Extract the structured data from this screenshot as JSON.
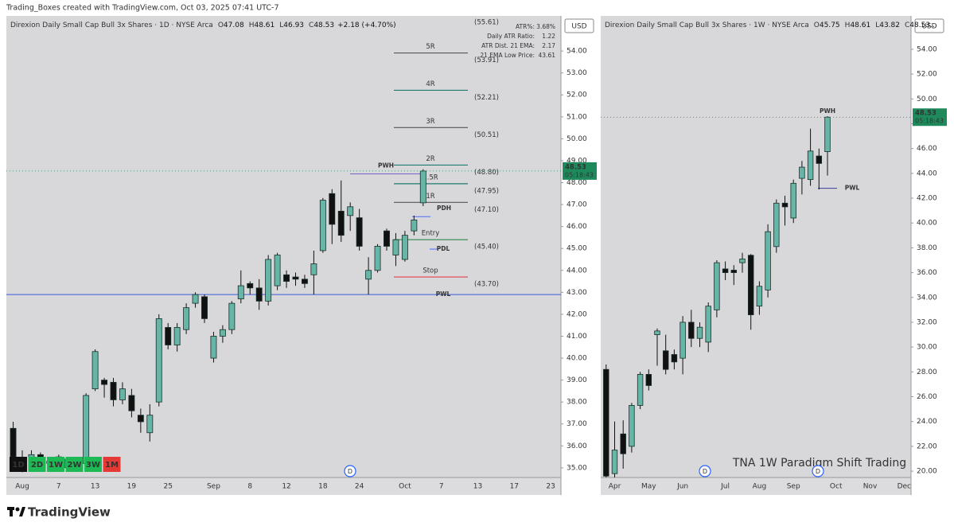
{
  "header": "Trading_Boxes created with TradingView.com, Oct 03, 2025 07:41 UTC-7",
  "brand": "TradingView",
  "ohlc_letters": [
    "O",
    "H",
    "L",
    "C"
  ],
  "event_marker": "D",
  "timeframes": [
    {
      "label": "1D",
      "color": "#111111"
    },
    {
      "label": "2D",
      "color": "#1db954"
    },
    {
      "label": "1W",
      "color": "#1db954"
    },
    {
      "label": "2W",
      "color": "#1db954"
    },
    {
      "label": "3W",
      "color": "#1db954"
    },
    {
      "label": "1M",
      "color": "#e53935"
    }
  ],
  "chart_data": [
    {
      "type": "candlestick",
      "legend_title": "Direxion Daily Small Cap Bull 3x Shares · 1D · NYSE Arca",
      "change": "+2.18 (+4.70%)",
      "currency": "USD",
      "timer": "05:18:43",
      "up_color": "#66b5a6",
      "down_color": "#111111",
      "last_price_color": "#1e8a5c",
      "grid": false,
      "ylim": [
        34.56,
        55.6
      ],
      "yticks": [
        {
          "value": 35,
          "label": "35.00"
        },
        {
          "value": 36,
          "label": "36.00"
        },
        {
          "value": 37,
          "label": "37.00"
        },
        {
          "value": 38,
          "label": "38.00"
        },
        {
          "value": 39,
          "label": "39.00"
        },
        {
          "value": 40,
          "label": "40.00"
        },
        {
          "value": 41,
          "label": "41.00"
        },
        {
          "value": 42,
          "label": "42.00"
        },
        {
          "value": 43,
          "label": "43.00"
        },
        {
          "value": 44,
          "label": "44.00"
        },
        {
          "value": 45,
          "label": "45.00"
        },
        {
          "value": 46,
          "label": "46.00"
        },
        {
          "value": 47,
          "label": "47.00"
        },
        {
          "value": 48,
          "label": "48.00"
        },
        {
          "value": 49,
          "label": "49.00"
        },
        {
          "value": 50,
          "label": "50.00"
        },
        {
          "value": 51,
          "label": "51.00"
        },
        {
          "value": 52,
          "label": "52.00"
        },
        {
          "value": 53,
          "label": "53.00"
        },
        {
          "value": 54,
          "label": "54.00"
        }
      ],
      "categories": [
        null,
        "Aug",
        null,
        null,
        null,
        "7",
        null,
        null,
        null,
        "13",
        null,
        null,
        null,
        "19",
        null,
        null,
        null,
        "25",
        null,
        null,
        null,
        null,
        "Sep",
        null,
        null,
        null,
        "8",
        null,
        null,
        null,
        "12",
        null,
        null,
        null,
        "18",
        null,
        null,
        null,
        "24",
        null,
        null,
        null,
        null,
        "Oct",
        null,
        null,
        null,
        "7",
        null,
        null,
        null,
        "13",
        null,
        null,
        null,
        "17",
        null,
        null,
        null,
        "23"
      ],
      "open": [
        36.8,
        35.4,
        35.1,
        35.6,
        35.2,
        35.5,
        35.0,
        35.3,
        35.2,
        38.6,
        39.0,
        38.9,
        38.1,
        38.3,
        37.4,
        36.6,
        38.0,
        41.4,
        40.6,
        41.3,
        42.5,
        42.8,
        40.0,
        41.0,
        41.3,
        42.7,
        43.4,
        43.2,
        42.6,
        43.3,
        43.8,
        43.7,
        43.6,
        43.8,
        44.9,
        47.5,
        46.7,
        46.5,
        46.4,
        43.6,
        44.0,
        45.8,
        44.7,
        44.5,
        45.8,
        47.08,
        null,
        null,
        null,
        null,
        null,
        null,
        null,
        null,
        null,
        null,
        null,
        null,
        null,
        null
      ],
      "high": [
        37.1,
        35.8,
        35.8,
        35.7,
        35.5,
        35.6,
        35.5,
        35.4,
        38.4,
        40.4,
        39.1,
        39.1,
        38.9,
        38.6,
        37.7,
        37.9,
        42.0,
        41.6,
        41.6,
        42.5,
        43.0,
        42.9,
        41.2,
        41.5,
        42.6,
        44.0,
        43.5,
        43.6,
        44.7,
        44.8,
        44.0,
        43.9,
        43.8,
        44.9,
        47.3,
        47.7,
        48.1,
        47.1,
        46.8,
        44.6,
        45.2,
        45.9,
        45.7,
        45.8,
        46.5,
        48.61,
        null,
        null,
        null,
        null,
        null,
        null,
        null,
        null,
        null,
        null,
        null,
        null,
        null,
        null
      ],
      "low": [
        35.2,
        34.8,
        35.0,
        35.1,
        35.0,
        34.9,
        34.9,
        34.9,
        35.0,
        38.5,
        38.2,
        37.8,
        37.9,
        37.3,
        36.6,
        36.2,
        37.8,
        40.4,
        40.3,
        41.1,
        42.3,
        41.6,
        39.8,
        40.7,
        41.1,
        42.5,
        42.9,
        42.2,
        42.4,
        43.1,
        43.2,
        43.3,
        43.2,
        42.9,
        44.8,
        45.2,
        45.3,
        45.8,
        44.9,
        42.9,
        43.9,
        44.9,
        44.2,
        44.4,
        45.6,
        46.93,
        null,
        null,
        null,
        null,
        null,
        null,
        null,
        null,
        null,
        null,
        null,
        null,
        null,
        null
      ],
      "close": [
        35.5,
        35.1,
        35.6,
        35.2,
        35.3,
        35.0,
        35.4,
        35.0,
        38.3,
        40.3,
        38.8,
        38.1,
        38.6,
        37.6,
        37.1,
        37.4,
        41.8,
        40.6,
        41.4,
        42.3,
        42.9,
        41.8,
        41.0,
        41.3,
        42.5,
        43.3,
        43.2,
        42.6,
        44.5,
        44.7,
        43.5,
        43.6,
        43.4,
        44.3,
        47.2,
        46.1,
        45.6,
        46.9,
        45.1,
        44.0,
        45.1,
        45.1,
        45.4,
        45.6,
        46.3,
        48.53,
        null,
        null,
        null,
        null,
        null,
        null,
        null,
        null,
        null,
        null,
        null,
        null,
        null,
        null
      ],
      "top_value_label": "(55.61)",
      "levels": [
        {
          "name": "5R",
          "value": 53.91,
          "value_label": "(53.91)",
          "color": "#555555"
        },
        {
          "name": "4R",
          "value": 52.21,
          "value_label": "(52.21)",
          "color": "#1f7a6e"
        },
        {
          "name": "3R",
          "value": 50.51,
          "value_label": "(50.51)",
          "color": "#555555"
        },
        {
          "name": "2R",
          "value": 48.8,
          "value_label": "(48.80)",
          "color": "#1f7a6e"
        },
        {
          "name": "1.5R",
          "value": 47.95,
          "value_label": "(47.95)",
          "color": "#1f7a6e"
        },
        {
          "name": "1R",
          "value": 47.1,
          "value_label": "(47.10)",
          "color": "#555555"
        },
        {
          "name": "Entry",
          "value": 45.4,
          "value_label": "(45.40)",
          "color": "#2a8a4a"
        },
        {
          "name": "Stop",
          "value": 43.7,
          "value_label": "(43.70)",
          "color": "#e0424a"
        }
      ],
      "markers": [
        {
          "name": "PWH",
          "value": 48.4,
          "color": "#7b61c4"
        },
        {
          "name": "PDH",
          "value": 46.45,
          "color": "#4a6cf7"
        },
        {
          "name": "PDL",
          "value": 44.97,
          "color": "#4a6cf7"
        },
        {
          "name": "PWL",
          "value": 42.9,
          "color": "#3b5bdb"
        }
      ],
      "info_table": [
        {
          "label": "ATR%:",
          "value": "3.68%",
          "color": "#111111"
        },
        {
          "label": "Daily ATR Ratio:",
          "value": "1.22",
          "color": "#e0424a"
        },
        {
          "label": "ATR Dist. 21 EMA:",
          "value": "2.17",
          "color": "#e0424a"
        },
        {
          "label": "21 EMA Low Price:",
          "value": "43.61",
          "color": "#111111"
        }
      ]
    },
    {
      "type": "candlestick",
      "legend_title": "Direxion Daily Small Cap Bull 3x Shares · 1W · NYSE Arca",
      "overflow": "...",
      "currency": "USD",
      "timer": "05:18:43",
      "watermark": "TNA 1W   Paradigm Shift Trading",
      "up_color": "#66b5a6",
      "down_color": "#111111",
      "last_price_color": "#1e8a5c",
      "grid": false,
      "ylim": [
        19.49,
        56.69
      ],
      "yticks": [
        {
          "value": 20,
          "label": "20.00"
        },
        {
          "value": 22,
          "label": "22.00"
        },
        {
          "value": 24,
          "label": "24.00"
        },
        {
          "value": 26,
          "label": "26.00"
        },
        {
          "value": 28,
          "label": "28.00"
        },
        {
          "value": 30,
          "label": "30.00"
        },
        {
          "value": 32,
          "label": "32.00"
        },
        {
          "value": 34,
          "label": "34.00"
        },
        {
          "value": 36,
          "label": "36.00"
        },
        {
          "value": 38,
          "label": "38.00"
        },
        {
          "value": 40,
          "label": "40.00"
        },
        {
          "value": 42,
          "label": "42.00"
        },
        {
          "value": 44,
          "label": "44.00"
        },
        {
          "value": 46,
          "label": "46.00"
        },
        {
          "value": 48,
          "label": "48.00"
        },
        {
          "value": 50,
          "label": "50.00"
        },
        {
          "value": 52,
          "label": "52.00"
        },
        {
          "value": 54,
          "label": "54.00"
        }
      ],
      "categories": [
        null,
        "Apr",
        null,
        null,
        null,
        "May",
        null,
        null,
        null,
        "Jun",
        null,
        null,
        null,
        null,
        "Jul",
        null,
        null,
        null,
        "Aug",
        null,
        null,
        null,
        "Sep",
        null,
        null,
        null,
        null,
        "Oct",
        null,
        null,
        null,
        "Nov",
        null,
        null,
        null,
        "Dec"
      ],
      "open": [
        28.2,
        19.8,
        23.0,
        22.0,
        25.3,
        27.8,
        31.0,
        29.7,
        29.4,
        29.1,
        32.0,
        30.7,
        30.4,
        33.0,
        36.3,
        36.2,
        36.8,
        37.4,
        33.3,
        34.6,
        38.1,
        41.6,
        40.4,
        43.6,
        43.5,
        45.4,
        45.75,
        null,
        null,
        null,
        null,
        null,
        null,
        null,
        null,
        null
      ],
      "high": [
        28.6,
        24.0,
        24.1,
        25.5,
        28.0,
        28.2,
        31.5,
        31.0,
        29.8,
        32.5,
        33.0,
        32.0,
        33.6,
        37.0,
        36.9,
        36.6,
        37.6,
        37.5,
        35.3,
        39.9,
        41.9,
        42.2,
        43.5,
        45.0,
        47.6,
        46.0,
        48.61,
        null,
        null,
        null,
        null,
        null,
        null,
        null,
        null,
        null
      ],
      "low": [
        19.5,
        19.5,
        20.2,
        21.5,
        25.0,
        26.5,
        28.5,
        27.8,
        28.2,
        27.8,
        30.0,
        30.0,
        29.6,
        32.4,
        35.4,
        35.0,
        36.0,
        31.4,
        32.6,
        34.0,
        37.6,
        39.8,
        40.0,
        42.3,
        43.0,
        42.7,
        43.82,
        null,
        null,
        null,
        null,
        null,
        null,
        null,
        null,
        null
      ],
      "close": [
        19.6,
        21.7,
        21.4,
        25.3,
        27.8,
        26.9,
        31.3,
        28.2,
        28.8,
        32.0,
        30.7,
        31.6,
        33.3,
        36.8,
        36.0,
        36.0,
        37.1,
        32.6,
        34.9,
        39.3,
        41.6,
        41.3,
        43.2,
        44.5,
        45.8,
        44.8,
        48.53,
        null,
        null,
        null,
        null,
        null,
        null,
        null,
        null,
        null
      ],
      "markers": [
        {
          "name": "PWH",
          "value": 49.0,
          "color": "#7b61c4"
        },
        {
          "name": "PWL",
          "value": 42.8,
          "color": "#3b3b9b"
        }
      ]
    }
  ]
}
